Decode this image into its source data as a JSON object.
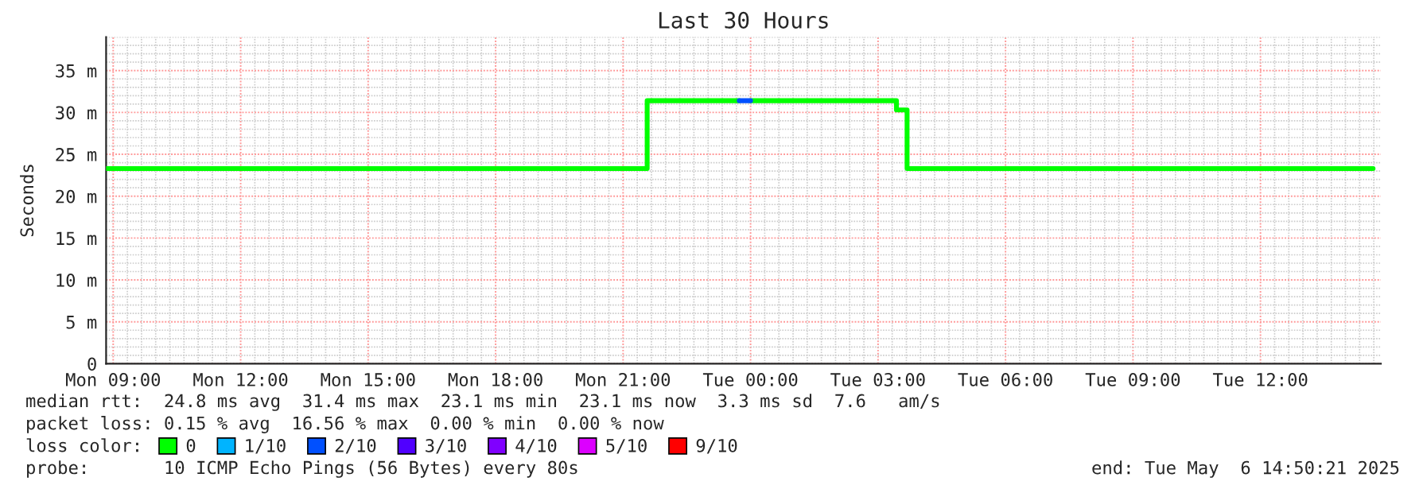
{
  "chart_data": {
    "type": "step",
    "title": "Last 30 Hours",
    "ylabel": "Seconds",
    "xlim": [
      "2025-05-05T08:50",
      "2025-05-06T14:50"
    ],
    "xticks": [
      {
        "value": "2025-05-05T09:00",
        "label": "Mon 09:00"
      },
      {
        "value": "2025-05-05T12:00",
        "label": "Mon 12:00"
      },
      {
        "value": "2025-05-05T15:00",
        "label": "Mon 15:00"
      },
      {
        "value": "2025-05-05T18:00",
        "label": "Mon 18:00"
      },
      {
        "value": "2025-05-05T21:00",
        "label": "Mon 21:00"
      },
      {
        "value": "2025-05-06T00:00",
        "label": "Tue 00:00"
      },
      {
        "value": "2025-05-06T03:00",
        "label": "Tue 03:00"
      },
      {
        "value": "2025-05-06T06:00",
        "label": "Tue 06:00"
      },
      {
        "value": "2025-05-06T09:00",
        "label": "Tue 09:00"
      },
      {
        "value": "2025-05-06T12:00",
        "label": "Tue 12:00"
      }
    ],
    "ylim": [
      0,
      39
    ],
    "yticks": [
      0,
      {
        "value": 5,
        "label": "5 m"
      },
      {
        "value": 10,
        "label": "10 m"
      },
      {
        "value": 15,
        "label": "15 m"
      },
      {
        "value": 20,
        "label": "20 m"
      },
      {
        "value": 25,
        "label": "25 m"
      },
      {
        "value": 30,
        "label": "30 m"
      },
      {
        "value": 35,
        "label": "35 m"
      }
    ],
    "grid": true,
    "legend": "bottom",
    "legend_title": "loss color:",
    "series": [
      {
        "name": "0",
        "color": "#00ff00",
        "x": [
          "2025-05-05T08:50",
          "2025-05-05T21:34",
          "2025-05-05T23:44",
          "2025-05-06T00:00",
          "2025-05-06T03:26",
          "2025-05-06T03:41",
          "2025-05-06T14:39"
        ],
        "values": [
          23.3,
          31.4,
          null,
          31.4,
          30.3,
          23.3,
          23.3
        ]
      },
      {
        "name": "1/10",
        "color": "#00b4ff"
      },
      {
        "name": "2/10",
        "color": "#0050ff",
        "x": [
          "2025-05-05T23:44",
          "2025-05-06T00:00"
        ],
        "values": [
          31.4,
          31.4
        ]
      },
      {
        "name": "3/10",
        "color": "#5000ff"
      },
      {
        "name": "4/10",
        "color": "#8000ff"
      },
      {
        "name": "5/10",
        "color": "#dc00ff"
      },
      {
        "name": "9/10",
        "color": "#ff0000"
      }
    ],
    "annotations": [
      "median rtt:  24.8 ms avg  31.4 ms max  23.1 ms min  23.1 ms now  3.3 ms sd  7.6   am/s",
      "packet loss: 0.15 % avg  16.56 % max  0.00 % min  0.00 % now",
      "probe:       10 ICMP Echo Pings (56 Bytes) every 80s",
      "end: Tue May  6 14:50:21 2025"
    ]
  }
}
